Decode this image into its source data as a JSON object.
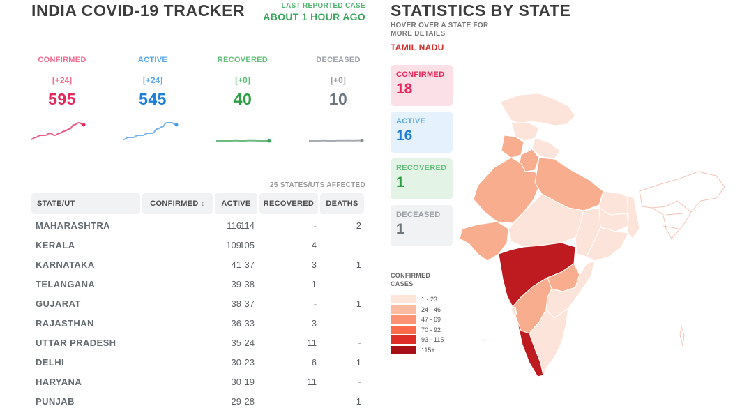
{
  "header": {
    "title": "INDIA COVID-19 TRACKER",
    "last_reported_label": "LAST REPORTED CASE",
    "last_reported_value": "ABOUT 1 HOUR AGO"
  },
  "levels": [
    {
      "key": "confirmed",
      "label": "CONFIRMED",
      "delta": "[+24]",
      "value": "595",
      "trend": [
        8,
        7,
        6,
        6,
        5,
        6,
        5,
        4,
        3,
        1,
        0,
        1
      ]
    },
    {
      "key": "active",
      "label": "ACTIVE",
      "delta": "[+24]",
      "value": "545",
      "trend": [
        8,
        7,
        7,
        6,
        6,
        5,
        5,
        3,
        2,
        0,
        0,
        1
      ]
    },
    {
      "key": "recovered",
      "label": "RECOVERED",
      "delta": "[+0]",
      "value": "40",
      "trend": [
        1,
        1,
        1,
        1,
        0.9,
        1,
        1,
        0.8,
        0.9,
        1,
        1,
        1
      ]
    },
    {
      "key": "deceased",
      "label": "DECEASED",
      "delta": "[+0]",
      "value": "10",
      "trend": [
        1,
        1,
        1,
        0.9,
        1,
        1,
        0.9,
        0.9,
        0.8,
        0.9,
        0.8,
        0.8
      ]
    }
  ],
  "table": {
    "affected": "25 STATES/UTS AFFECTED",
    "headers": {
      "state": "STATE/UT",
      "confirmed": "CONFIRMED",
      "active": "ACTIVE",
      "recovered": "RECOVERED",
      "deaths": "DEATHS"
    },
    "rows": [
      {
        "state": "MAHARASHTRA",
        "confirmed": "116",
        "active": "114",
        "recovered": "-",
        "deaths": "2"
      },
      {
        "state": "KERALA",
        "confirmed": "109",
        "active": "105",
        "recovered": "4",
        "deaths": "-"
      },
      {
        "state": "KARNATAKA",
        "confirmed": "41",
        "active": "37",
        "recovered": "3",
        "deaths": "1"
      },
      {
        "state": "TELANGANA",
        "confirmed": "39",
        "active": "38",
        "recovered": "1",
        "deaths": "-"
      },
      {
        "state": "GUJARAT",
        "confirmed": "38",
        "active": "37",
        "recovered": "-",
        "deaths": "1"
      },
      {
        "state": "RAJASTHAN",
        "confirmed": "36",
        "active": "33",
        "recovered": "3",
        "deaths": "-"
      },
      {
        "state": "UTTAR PRADESH",
        "confirmed": "35",
        "active": "24",
        "recovered": "11",
        "deaths": "-"
      },
      {
        "state": "DELHI",
        "confirmed": "30",
        "active": "23",
        "recovered": "6",
        "deaths": "1"
      },
      {
        "state": "HARYANA",
        "confirmed": "30",
        "active": "19",
        "recovered": "11",
        "deaths": "-"
      },
      {
        "state": "PUNJAB",
        "confirmed": "29",
        "active": "28",
        "recovered": "-",
        "deaths": "1"
      }
    ]
  },
  "stats": {
    "title": "STATISTICS BY STATE",
    "hint": "HOVER OVER A STATE FOR MORE DETAILS",
    "selected_state": "TAMIL NADU",
    "cards": {
      "confirmed": {
        "label": "CONFIRMED",
        "value": "18"
      },
      "active": {
        "label": "ACTIVE",
        "value": "16"
      },
      "recovered": {
        "label": "RECOVERED",
        "value": "1"
      },
      "deceased": {
        "label": "DECEASED",
        "value": "1"
      }
    },
    "legend_title": "CONFIRMED CASES",
    "legend": [
      {
        "label": "1 - 23",
        "color": "#fee5d9"
      },
      {
        "label": "24 - 46",
        "color": "#fcbba1"
      },
      {
        "label": "47 - 69",
        "color": "#fc9272"
      },
      {
        "label": "70 - 92",
        "color": "#fb6a4a"
      },
      {
        "label": "93 - 115",
        "color": "#de2d26"
      },
      {
        "label": "115+",
        "color": "#a50f15"
      }
    ]
  },
  "colors": {
    "confirmed": "#e6275c",
    "active": "#1e7fd8",
    "recovered": "#2aa043",
    "deceased": "#6c757d",
    "map_high": "#bd1b1f",
    "map_mid": "#f7ad8e",
    "map_low": "#fde4da"
  }
}
